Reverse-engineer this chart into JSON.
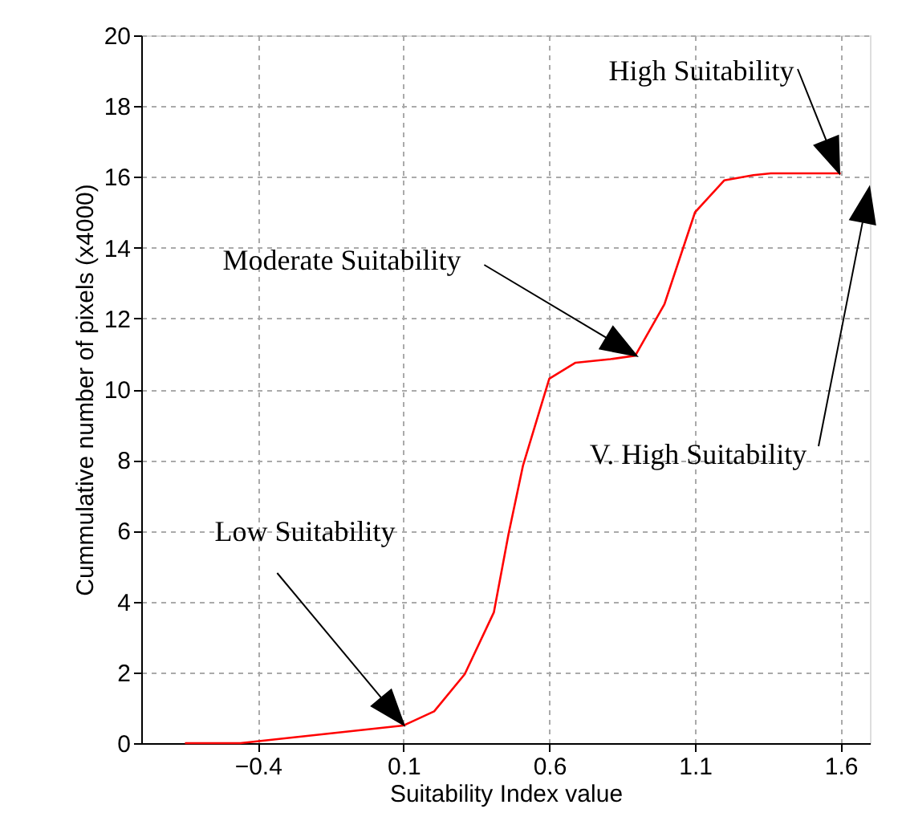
{
  "chart_data": {
    "type": "line",
    "xlabel": "Suitability Index value",
    "ylabel": "Cummulative number of pixels (x4000)",
    "x": [
      -0.65,
      -0.46,
      0.1,
      0.205,
      0.31,
      0.41,
      0.46,
      0.51,
      0.6,
      0.69,
      0.81,
      0.895,
      0.995,
      1.1,
      1.2,
      1.3,
      1.36,
      1.6
    ],
    "series": [
      {
        "color": "#ff0000",
        "values": [
          0,
          0,
          0.5,
          0.9,
          1.95,
          3.7,
          5.9,
          7.85,
          10.3,
          10.75,
          10.85,
          10.95,
          12.4,
          15.0,
          15.9,
          16.05,
          16.1,
          16.1
        ]
      }
    ],
    "xlim": [
      -0.8,
      1.7
    ],
    "xticks": [
      -0.4,
      0.1,
      0.6,
      1.1,
      1.6
    ],
    "ylim": [
      0,
      20
    ],
    "yticks": [
      0,
      2,
      4,
      6,
      8,
      10,
      12,
      14,
      16,
      18,
      20
    ],
    "grid": true,
    "marker": "none",
    "line_style": "solid",
    "annotations": [
      "Low Suitability",
      "Moderate Suitability",
      "High Suitability",
      "V. High Suitability"
    ]
  }
}
